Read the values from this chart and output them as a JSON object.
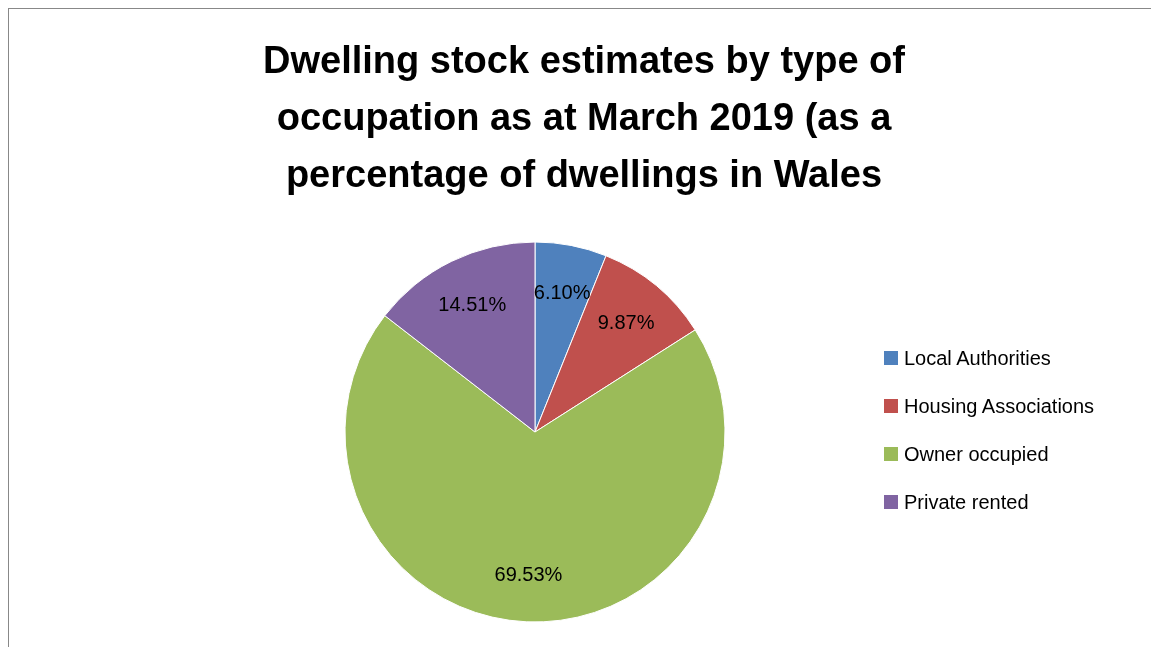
{
  "chart_data": {
    "type": "pie",
    "title": "Dwelling stock estimates by type of occupation as at March 2019 (as a percentage of dwellings in Wales",
    "categories": [
      "Local Authorities",
      "Housing Associations",
      "Owner occupied",
      "Private rented"
    ],
    "values": [
      6.1,
      9.87,
      69.53,
      14.51
    ],
    "colors": [
      "#4f81bd",
      "#c0504d",
      "#9bbb59",
      "#8064a2"
    ],
    "value_labels": [
      "6.10%",
      "9.87%",
      "69.53%",
      "14.51%"
    ],
    "legend": "right"
  }
}
